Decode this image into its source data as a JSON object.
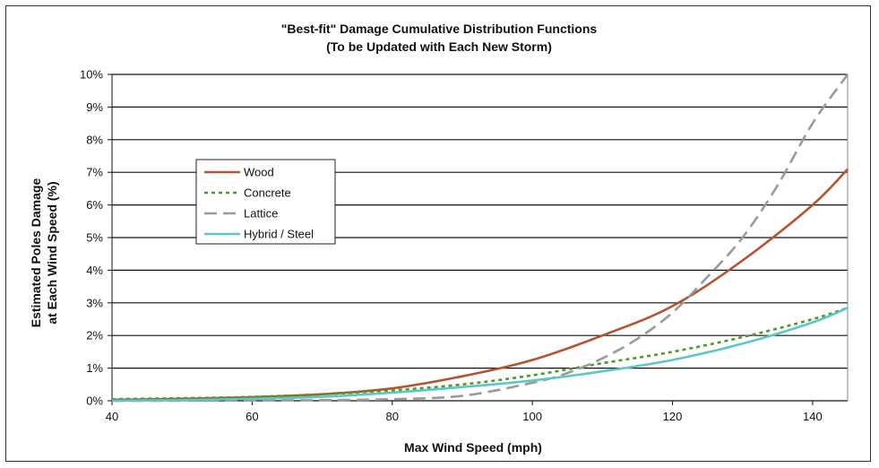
{
  "chart_data": {
    "type": "line",
    "title_line1": "\"Best-fit\" Damage Cumulative Distribution Functions",
    "title_line2": "(To be Updated with Each New Storm)",
    "xlabel": "Max Wind Speed (mph)",
    "ylabel_line1": "Estimated Poles Damage",
    "ylabel_line2": "at Each Wind Speed (%)",
    "xlim": [
      40,
      145
    ],
    "ylim": [
      0,
      10
    ],
    "x_ticks": [
      40,
      60,
      80,
      100,
      120,
      140
    ],
    "x_tick_labels": [
      "40",
      "60",
      "80",
      "100",
      "120",
      "140"
    ],
    "y_ticks": [
      0,
      1,
      2,
      3,
      4,
      5,
      6,
      7,
      8,
      9,
      10
    ],
    "y_tick_labels": [
      "0%",
      "1%",
      "2%",
      "3%",
      "4%",
      "5%",
      "6%",
      "7%",
      "8%",
      "9%",
      "10%"
    ],
    "grid": "horizontal",
    "legend_position": "upper-left",
    "series": [
      {
        "name": "Wood",
        "color": "#b5532e",
        "dash": "solid",
        "x": [
          40,
          50,
          60,
          70,
          80,
          90,
          100,
          110,
          120,
          130,
          140,
          145
        ],
        "y": [
          0.03,
          0.06,
          0.11,
          0.2,
          0.38,
          0.75,
          1.25,
          2.0,
          2.9,
          4.3,
          6.0,
          7.1
        ]
      },
      {
        "name": "Concrete",
        "color": "#4c9a2a",
        "dash": "dotted",
        "x": [
          40,
          50,
          60,
          70,
          80,
          90,
          100,
          110,
          120,
          130,
          140,
          145
        ],
        "y": [
          0.05,
          0.08,
          0.12,
          0.2,
          0.32,
          0.5,
          0.78,
          1.15,
          1.5,
          1.95,
          2.5,
          2.85
        ]
      },
      {
        "name": "Lattice",
        "color": "#9a9a9a",
        "dash": "dashed",
        "x": [
          40,
          50,
          60,
          70,
          80,
          90,
          100,
          105,
          110,
          115,
          120,
          125,
          130,
          135,
          140,
          145
        ],
        "y": [
          0.0,
          0.0,
          0.01,
          0.02,
          0.05,
          0.15,
          0.55,
          0.85,
          1.3,
          1.9,
          2.7,
          3.8,
          5.0,
          6.6,
          8.5,
          10.0
        ]
      },
      {
        "name": "Hybrid / Steel",
        "color": "#5cc7c7",
        "dash": "solid",
        "x": [
          40,
          50,
          60,
          70,
          80,
          90,
          100,
          110,
          120,
          130,
          140,
          145
        ],
        "y": [
          0.0,
          0.02,
          0.06,
          0.12,
          0.25,
          0.42,
          0.62,
          0.9,
          1.25,
          1.75,
          2.4,
          2.85
        ]
      }
    ]
  }
}
